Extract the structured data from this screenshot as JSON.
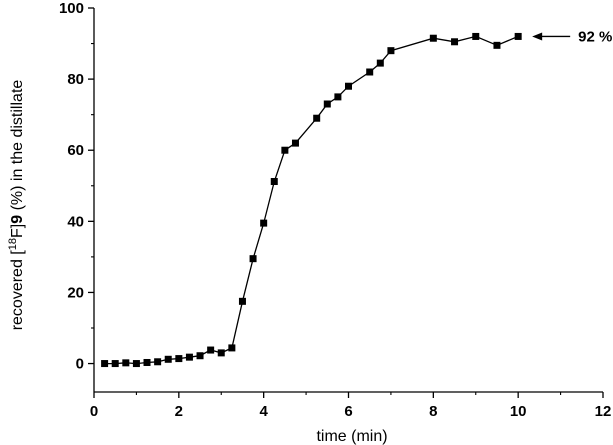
{
  "chart_data": {
    "type": "line",
    "title": "",
    "xlabel": "time (min)",
    "ylabel": {
      "prefix": "recovered [",
      "superscript": "18",
      "element": "F]",
      "compound": "9",
      "suffix": " (%) in the distillate"
    },
    "xlim": [
      0,
      12
    ],
    "ylim": [
      -8,
      100
    ],
    "xticks": [
      0,
      2,
      4,
      6,
      8,
      10,
      12
    ],
    "yticks": [
      0,
      20,
      40,
      60,
      80,
      100
    ],
    "xtick_labels": [
      "0",
      "2",
      "4",
      "6",
      "8",
      "10",
      "12"
    ],
    "ytick_labels": [
      "0",
      "20",
      "40",
      "60",
      "80",
      "100"
    ],
    "grid": false,
    "marker": "square",
    "color": "#000000",
    "series": [
      {
        "name": "recovered",
        "x": [
          0.25,
          0.5,
          0.75,
          1.0,
          1.25,
          1.5,
          1.75,
          2.0,
          2.25,
          2.5,
          2.75,
          3.0,
          3.25,
          3.5,
          3.75,
          4.0,
          4.25,
          4.5,
          4.75,
          5.25,
          5.5,
          5.75,
          6.0,
          6.5,
          6.75,
          7.0,
          8.0,
          8.5,
          9.0,
          9.5,
          10.0
        ],
        "y": [
          0,
          0,
          0.2,
          0,
          0.3,
          0.5,
          1.2,
          1.4,
          1.8,
          2.2,
          3.8,
          3.0,
          4.4,
          17.5,
          29.5,
          39.5,
          51.2,
          60.0,
          62.0,
          69.0,
          73.0,
          75.0,
          78.0,
          82.0,
          84.5,
          88.0,
          91.5,
          90.5,
          92.0,
          89.5,
          92.0
        ]
      }
    ],
    "annotations": [
      {
        "text": "92 %",
        "x": 10.0,
        "y": 92
      }
    ]
  }
}
